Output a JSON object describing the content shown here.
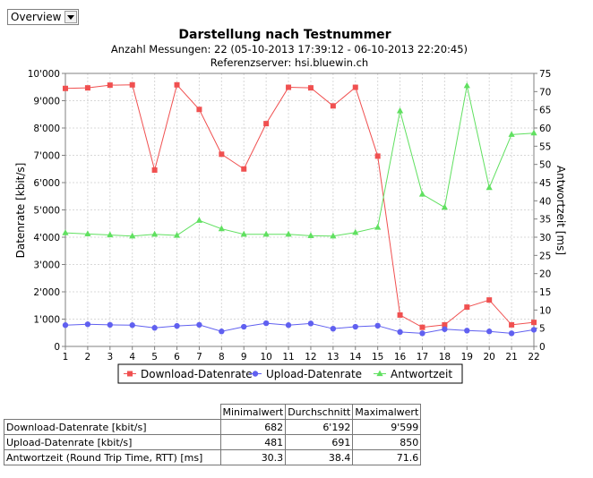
{
  "view_select": {
    "value": "Overview"
  },
  "chart_data": {
    "type": "line",
    "title": "Darstellung nach Testnummer",
    "subtitle": "Anzahl Messungen: 22 (05-10-2013 17:39:12 - 06-10-2013 22:20:45)",
    "subtitle2": "Referenzserver: hsi.bluewin.ch",
    "xlabel": "",
    "ylabel": "Datenrate [kbit/s]",
    "y2label": "Antwortzeit [ms]",
    "x": [
      1,
      2,
      3,
      4,
      5,
      6,
      7,
      8,
      9,
      10,
      11,
      12,
      13,
      14,
      15,
      16,
      17,
      18,
      19,
      20,
      21,
      22
    ],
    "ylim": [
      0,
      10000
    ],
    "y2lim": [
      0,
      75
    ],
    "yticks": [
      "0",
      "1'000",
      "2'000",
      "3'000",
      "4'000",
      "5'000",
      "6'000",
      "7'000",
      "8'000",
      "9'000",
      "10'000"
    ],
    "y2ticks": [
      "0",
      "5",
      "10",
      "15",
      "20",
      "25",
      "30",
      "35",
      "40",
      "45",
      "50",
      "55",
      "60",
      "65",
      "70",
      "75"
    ],
    "grid": true,
    "legend_position": "bottom",
    "series": [
      {
        "name": "Download-Datenrate",
        "axis": "left",
        "color": "#f05050",
        "marker": "square",
        "values": [
          9450,
          9470,
          9570,
          9580,
          6460,
          9580,
          8680,
          7040,
          6500,
          8160,
          9490,
          9470,
          8810,
          9490,
          6970,
          1150,
          700,
          790,
          1440,
          1700,
          790,
          880
        ]
      },
      {
        "name": "Upload-Datenrate",
        "axis": "left",
        "color": "#6060f0",
        "marker": "circle",
        "values": [
          780,
          810,
          790,
          780,
          680,
          750,
          790,
          550,
          720,
          850,
          780,
          840,
          650,
          720,
          760,
          530,
          481,
          630,
          580,
          550,
          480,
          610
        ]
      },
      {
        "name": "Antwortzeit",
        "axis": "right",
        "color": "#60e060",
        "marker": "triangle",
        "values": [
          31.2,
          30.9,
          30.6,
          30.3,
          30.8,
          30.5,
          34.6,
          32.3,
          30.8,
          30.8,
          30.8,
          30.4,
          30.3,
          31.3,
          32.7,
          64.7,
          41.8,
          38.2,
          71.6,
          43.6,
          58.2,
          58.6
        ]
      }
    ]
  },
  "stats_table": {
    "headers": [
      "Minimalwert",
      "Durchschnitt",
      "Maximalwert"
    ],
    "rows": [
      {
        "label": "Download-Datenrate [kbit/s]",
        "min": "682",
        "avg": "6'192",
        "max": "9'599"
      },
      {
        "label": "Upload-Datenrate [kbit/s]",
        "min": "481",
        "avg": "691",
        "max": "850"
      },
      {
        "label": "Antwortzeit (Round Trip Time, RTT) [ms]",
        "min": "30.3",
        "avg": "38.4",
        "max": "71.6"
      }
    ]
  }
}
